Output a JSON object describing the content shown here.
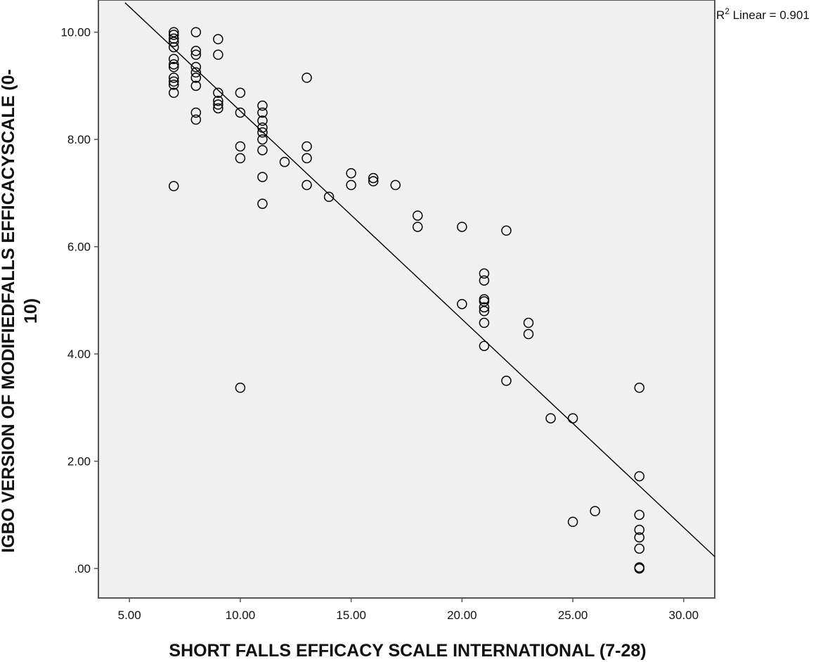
{
  "chart_data": {
    "type": "scatter",
    "title": "",
    "xlabel": "SHORT FALLS EFFICACY SCALE INTERNATIONAL (7-28)",
    "ylabel_lines": [
      "IGBO VERSION  OF MODIFIEDFALLS EFFICACYSCALE (0-",
      "10)"
    ],
    "xlim": [
      3.6,
      31.4
    ],
    "ylim": [
      -0.55,
      10.6
    ],
    "x_ticks": [
      5,
      10,
      15,
      20,
      25,
      30
    ],
    "x_tick_labels": [
      "5.00",
      "10.00",
      "15.00",
      "20.00",
      "25.00",
      "30.00"
    ],
    "y_ticks": [
      0,
      2,
      4,
      6,
      8,
      10
    ],
    "y_tick_labels": [
      ".00",
      "2.00",
      "4.00",
      "6.00",
      "8.00",
      "10.00"
    ],
    "grid": false,
    "plot_background": "#f0f0f0",
    "marker": "open-circle",
    "marker_color": "#000000",
    "fit_line": {
      "type": "linear",
      "label_prefix": "R",
      "label_sup": "2",
      "label_suffix": " Linear = 0.901",
      "x_start": 4.8,
      "y_start": 10.55,
      "x_end": 31.4,
      "y_end": 0.22
    },
    "points": [
      {
        "x": 7,
        "y": 10.0
      },
      {
        "x": 7,
        "y": 9.95
      },
      {
        "x": 7,
        "y": 9.88
      },
      {
        "x": 7,
        "y": 9.82
      },
      {
        "x": 7,
        "y": 9.72
      },
      {
        "x": 7,
        "y": 9.5
      },
      {
        "x": 7,
        "y": 9.4
      },
      {
        "x": 7,
        "y": 9.35
      },
      {
        "x": 7,
        "y": 9.15
      },
      {
        "x": 7,
        "y": 9.08
      },
      {
        "x": 7,
        "y": 9.02
      },
      {
        "x": 7,
        "y": 8.87
      },
      {
        "x": 7,
        "y": 7.13
      },
      {
        "x": 8,
        "y": 10.0
      },
      {
        "x": 8,
        "y": 9.65
      },
      {
        "x": 8,
        "y": 9.58
      },
      {
        "x": 8,
        "y": 9.35
      },
      {
        "x": 8,
        "y": 9.25
      },
      {
        "x": 8,
        "y": 9.15
      },
      {
        "x": 8,
        "y": 9.0
      },
      {
        "x": 8,
        "y": 8.5
      },
      {
        "x": 8,
        "y": 8.37
      },
      {
        "x": 9,
        "y": 9.87
      },
      {
        "x": 9,
        "y": 9.58
      },
      {
        "x": 9,
        "y": 8.87
      },
      {
        "x": 9,
        "y": 8.72
      },
      {
        "x": 9,
        "y": 8.65
      },
      {
        "x": 9,
        "y": 8.58
      },
      {
        "x": 10,
        "y": 8.87
      },
      {
        "x": 10,
        "y": 8.5
      },
      {
        "x": 10,
        "y": 7.87
      },
      {
        "x": 10,
        "y": 7.65
      },
      {
        "x": 10,
        "y": 3.37
      },
      {
        "x": 11,
        "y": 8.63
      },
      {
        "x": 11,
        "y": 8.5
      },
      {
        "x": 11,
        "y": 8.35
      },
      {
        "x": 11,
        "y": 8.22
      },
      {
        "x": 11,
        "y": 8.13
      },
      {
        "x": 11,
        "y": 8.0
      },
      {
        "x": 11,
        "y": 7.8
      },
      {
        "x": 11,
        "y": 7.3
      },
      {
        "x": 11,
        "y": 6.8
      },
      {
        "x": 12,
        "y": 7.58
      },
      {
        "x": 13,
        "y": 9.15
      },
      {
        "x": 13,
        "y": 7.87
      },
      {
        "x": 13,
        "y": 7.65
      },
      {
        "x": 13,
        "y": 7.15
      },
      {
        "x": 14,
        "y": 6.93
      },
      {
        "x": 15,
        "y": 7.37
      },
      {
        "x": 15,
        "y": 7.15
      },
      {
        "x": 16,
        "y": 7.28
      },
      {
        "x": 16,
        "y": 7.22
      },
      {
        "x": 17,
        "y": 7.15
      },
      {
        "x": 18,
        "y": 6.58
      },
      {
        "x": 18,
        "y": 6.37
      },
      {
        "x": 20,
        "y": 6.37
      },
      {
        "x": 20,
        "y": 4.93
      },
      {
        "x": 21,
        "y": 5.5
      },
      {
        "x": 21,
        "y": 5.37
      },
      {
        "x": 21,
        "y": 5.02
      },
      {
        "x": 21,
        "y": 4.98
      },
      {
        "x": 21,
        "y": 4.87
      },
      {
        "x": 21,
        "y": 4.8
      },
      {
        "x": 21,
        "y": 4.58
      },
      {
        "x": 21,
        "y": 4.15
      },
      {
        "x": 22,
        "y": 6.3
      },
      {
        "x": 22,
        "y": 3.5
      },
      {
        "x": 23,
        "y": 4.58
      },
      {
        "x": 23,
        "y": 4.37
      },
      {
        "x": 24,
        "y": 2.8
      },
      {
        "x": 25,
        "y": 2.8
      },
      {
        "x": 25,
        "y": 0.87
      },
      {
        "x": 26,
        "y": 1.07
      },
      {
        "x": 28,
        "y": 3.37
      },
      {
        "x": 28,
        "y": 1.72
      },
      {
        "x": 28,
        "y": 1.0
      },
      {
        "x": 28,
        "y": 0.72
      },
      {
        "x": 28,
        "y": 0.58
      },
      {
        "x": 28,
        "y": 0.37
      },
      {
        "x": 28,
        "y": 0.02
      },
      {
        "x": 28,
        "y": 0.0
      }
    ]
  }
}
